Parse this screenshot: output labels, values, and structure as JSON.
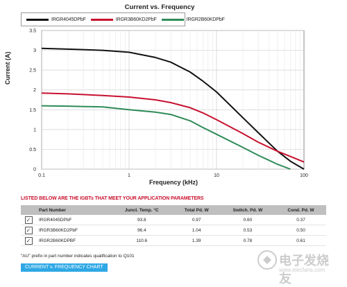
{
  "chart_data": {
    "type": "line",
    "title": "Current vs. Frequency",
    "xlabel": "Frequency (kHz)",
    "ylabel": "Current (A)",
    "x_scale": "log",
    "xlim": [
      0.1,
      100
    ],
    "ylim": [
      0,
      3.5
    ],
    "x_ticks": [
      "0.1",
      "1",
      "10",
      "100"
    ],
    "y_ticks": [
      "0",
      "0.5",
      "1",
      "1.5",
      "2",
      "2.5",
      "3",
      "3.5"
    ],
    "grid": true,
    "legend_position": "top-left",
    "series": [
      {
        "name": "IRGR4045DPbF",
        "color": "#111111",
        "x": [
          0.1,
          0.2,
          0.5,
          1,
          2,
          3,
          5,
          7,
          10,
          20,
          30,
          50,
          70,
          100
        ],
        "y": [
          3.05,
          3.03,
          3.0,
          2.95,
          2.82,
          2.7,
          2.45,
          2.22,
          1.95,
          1.3,
          0.92,
          0.45,
          0.2,
          0
        ]
      },
      {
        "name": "IRGR3B60KD2PbF",
        "color": "#c8102e",
        "x": [
          0.1,
          0.2,
          0.5,
          1,
          2,
          3,
          5,
          7,
          10,
          20,
          30,
          50,
          70,
          100
        ],
        "y": [
          1.92,
          1.9,
          1.86,
          1.82,
          1.75,
          1.68,
          1.55,
          1.42,
          1.25,
          0.9,
          0.68,
          0.45,
          0.32,
          0.18
        ]
      },
      {
        "name": "IRGR2B60KDPbF",
        "color": "#2e8b57",
        "x": [
          0.1,
          0.2,
          0.5,
          1,
          2,
          3,
          5,
          7,
          10,
          20,
          30,
          50,
          70
        ],
        "y": [
          1.6,
          1.59,
          1.57,
          1.5,
          1.44,
          1.38,
          1.22,
          1.05,
          0.88,
          0.55,
          0.35,
          0.12,
          0
        ]
      }
    ]
  },
  "table": {
    "heading": "LISTED BELOW ARE THE IGBTs THAT MEET YOUR APPLICATION PARAMETERS",
    "columns": [
      "Part Number",
      "Junct. Temp. °C",
      "Total Pd. W",
      "Switch. Pd. W",
      "Cond. Pd. W"
    ],
    "rows": [
      {
        "check": "✓",
        "part": "IRGR4045DPbF",
        "temp": "93.8",
        "total": "0.97",
        "switch": "0.60",
        "cond": "0.37"
      },
      {
        "check": "✓",
        "part": "IRGR3B60KD2PbF",
        "temp": "96.4",
        "total": "1.04",
        "switch": "0.53",
        "cond": "0.50"
      },
      {
        "check": "✓",
        "part": "IRGR2B60KDPBF",
        "temp": "110.6",
        "total": "1.39",
        "switch": "0.78",
        "cond": "0.61"
      }
    ]
  },
  "footnote": "\"AU\" prefix in part number indicates qualification to Q101",
  "button_label": "CURRENT v. FREQUENCY CHART",
  "watermark": {
    "text": "电子发烧友",
    "sub": "www.elecfans.com"
  }
}
